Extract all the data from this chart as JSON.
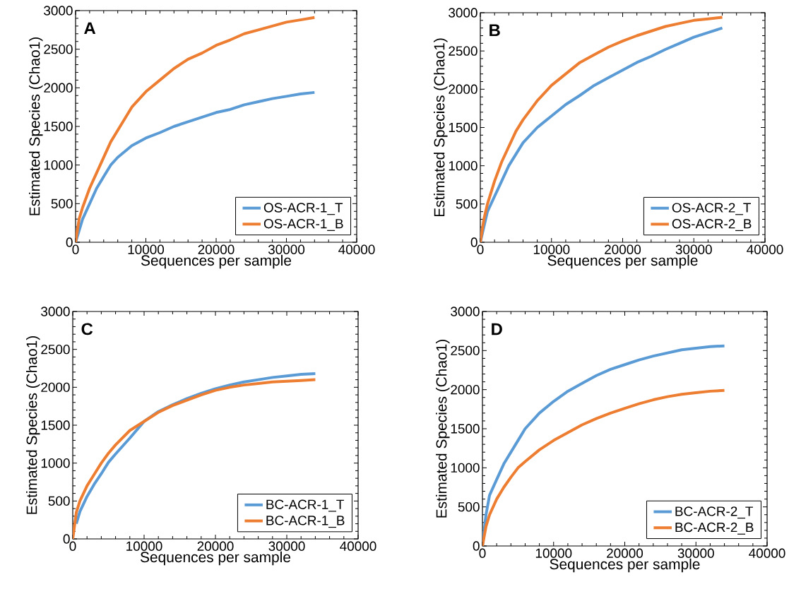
{
  "chart_data": [
    {
      "type": "line",
      "title": "A",
      "xlabel": "Sequences per sample",
      "ylabel": "Estimated Species (Chao1)",
      "xlim": [
        0,
        40000
      ],
      "ylim": [
        0,
        3000
      ],
      "xticks": [
        0,
        10000,
        20000,
        30000,
        40000
      ],
      "yticks": [
        0,
        500,
        1000,
        1500,
        2000,
        2500,
        3000
      ],
      "legend": "bottom right",
      "grid": false,
      "marker": "none",
      "line_style": "solid",
      "x": [
        0,
        500,
        1000,
        2000,
        3000,
        4000,
        5000,
        6000,
        8000,
        10000,
        12000,
        14000,
        16000,
        18000,
        20000,
        22000,
        24000,
        26000,
        28000,
        30000,
        32000,
        34000
      ],
      "series": [
        {
          "name": "OS-ACR-1_T",
          "color": "#5b9bd5",
          "values": [
            0,
            150,
            300,
            500,
            700,
            850,
            1000,
            1100,
            1250,
            1350,
            1420,
            1500,
            1560,
            1620,
            1680,
            1720,
            1780,
            1820,
            1860,
            1890,
            1920,
            1940
          ]
        },
        {
          "name": "OS-ACR-1_B",
          "color": "#ed7d31",
          "values": [
            0,
            300,
            450,
            700,
            900,
            1100,
            1300,
            1450,
            1750,
            1950,
            2100,
            2250,
            2370,
            2450,
            2550,
            2620,
            2700,
            2750,
            2800,
            2850,
            2880,
            2910
          ]
        }
      ]
    },
    {
      "type": "line",
      "title": "B",
      "xlabel": "Sequences per sample",
      "ylabel": "Estimated Species (Chao1)",
      "xlim": [
        0,
        40000
      ],
      "ylim": [
        0,
        3000
      ],
      "xticks": [
        0,
        10000,
        20000,
        30000,
        40000
      ],
      "yticks": [
        0,
        500,
        1000,
        1500,
        2000,
        2500,
        3000
      ],
      "legend": "bottom right",
      "grid": false,
      "marker": "none",
      "line_style": "solid",
      "x": [
        0,
        500,
        1000,
        2000,
        3000,
        4000,
        5000,
        6000,
        8000,
        10000,
        12000,
        14000,
        16000,
        18000,
        20000,
        22000,
        24000,
        26000,
        28000,
        30000,
        32000,
        34000
      ],
      "series": [
        {
          "name": "OS-ACR-2_T",
          "color": "#5b9bd5",
          "values": [
            0,
            200,
            400,
            600,
            800,
            1000,
            1150,
            1300,
            1500,
            1650,
            1800,
            1920,
            2050,
            2150,
            2250,
            2350,
            2430,
            2520,
            2600,
            2680,
            2740,
            2800
          ]
        },
        {
          "name": "OS-ACR-2_B",
          "color": "#ed7d31",
          "values": [
            0,
            300,
            500,
            800,
            1050,
            1250,
            1450,
            1600,
            1850,
            2050,
            2200,
            2350,
            2450,
            2550,
            2630,
            2700,
            2760,
            2820,
            2860,
            2900,
            2920,
            2940
          ]
        }
      ]
    },
    {
      "type": "line",
      "title": "C",
      "xlabel": "Sequences per sample",
      "ylabel": "Estimated Species (Chao1)",
      "xlim": [
        0,
        40000
      ],
      "ylim": [
        0,
        3000
      ],
      "xticks": [
        0,
        10000,
        20000,
        30000,
        40000
      ],
      "yticks": [
        0,
        500,
        1000,
        1500,
        2000,
        2500,
        3000
      ],
      "legend": "bottom right",
      "grid": false,
      "marker": "none",
      "line_style": "solid",
      "x": [
        0,
        500,
        1000,
        2000,
        3000,
        4000,
        5000,
        6000,
        8000,
        10000,
        12000,
        14000,
        16000,
        18000,
        20000,
        22000,
        24000,
        26000,
        28000,
        30000,
        32000,
        34000
      ],
      "series": [
        {
          "name": "BC-ACR-1_T",
          "color": "#5b9bd5",
          "values": [
            null,
            200,
            360,
            560,
            720,
            860,
            1010,
            1120,
            1330,
            1550,
            1680,
            1770,
            1850,
            1920,
            1980,
            2030,
            2070,
            2100,
            2130,
            2150,
            2170,
            2180
          ]
        },
        {
          "name": "BC-ACR-1_B",
          "color": "#ed7d31",
          "values": [
            0,
            350,
            500,
            700,
            850,
            1000,
            1130,
            1240,
            1430,
            1550,
            1670,
            1760,
            1830,
            1900,
            1960,
            2000,
            2030,
            2050,
            2070,
            2080,
            2090,
            2100
          ]
        }
      ]
    },
    {
      "type": "line",
      "title": "D",
      "xlabel": "Sequences per sample",
      "ylabel": "Estimated Species (Chao1)",
      "xlim": [
        0,
        40000
      ],
      "ylim": [
        0,
        3000
      ],
      "xticks": [
        0,
        10000,
        20000,
        30000,
        40000
      ],
      "yticks": [
        0,
        500,
        1000,
        1500,
        2000,
        2500,
        3000
      ],
      "legend": "bottom right",
      "grid": false,
      "marker": "none",
      "line_style": "solid",
      "x": [
        0,
        500,
        1000,
        2000,
        3000,
        4000,
        5000,
        6000,
        8000,
        10000,
        12000,
        14000,
        16000,
        18000,
        20000,
        22000,
        24000,
        26000,
        28000,
        30000,
        32000,
        34000
      ],
      "series": [
        {
          "name": "BC-ACR-2_T",
          "color": "#5b9bd5",
          "values": [
            0,
            400,
            650,
            850,
            1050,
            1200,
            1350,
            1500,
            1700,
            1850,
            1980,
            2080,
            2180,
            2260,
            2320,
            2380,
            2430,
            2470,
            2510,
            2530,
            2550,
            2560
          ]
        },
        {
          "name": "BC-ACR-2_B",
          "color": "#ed7d31",
          "values": [
            0,
            250,
            400,
            600,
            750,
            880,
            1000,
            1080,
            1230,
            1350,
            1450,
            1550,
            1630,
            1700,
            1760,
            1820,
            1870,
            1910,
            1940,
            1960,
            1980,
            1990
          ]
        }
      ]
    }
  ]
}
